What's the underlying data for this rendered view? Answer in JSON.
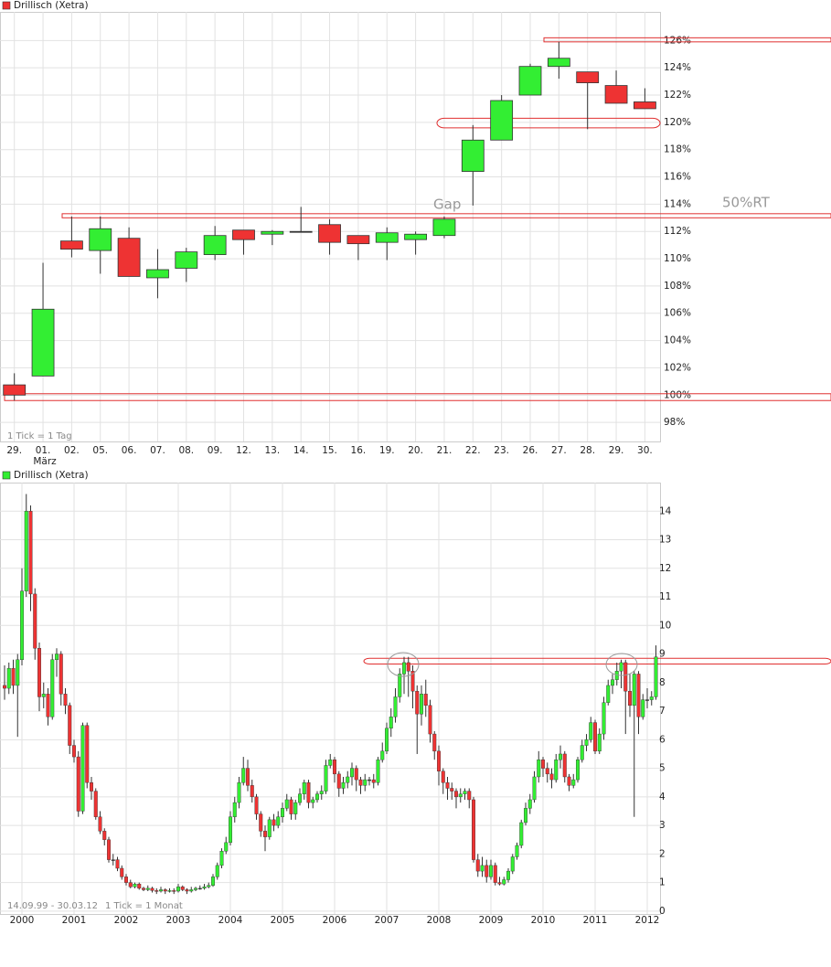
{
  "chart_data": [
    {
      "type": "candlestick",
      "categories": [
        "29.",
        "01.",
        "02.",
        "05.",
        "06.",
        "07.",
        "08.",
        "09.",
        "12.",
        "13.",
        "14.",
        "15.",
        "16.",
        "19.",
        "20.",
        "21.",
        "22.",
        "23.",
        "26.",
        "27.",
        "28.",
        "29.",
        "30."
      ],
      "series": [
        {
          "name": "Drillisch (Xetra)",
          "color": "#ee3333",
          "open": [
            100.75,
            101.4,
            111.3,
            110.6,
            111.5,
            108.6,
            109.3,
            110.3,
            112.1,
            111.8,
            112.0,
            112.5,
            111.7,
            111.2,
            111.4,
            111.7,
            116.4,
            118.7,
            122.0,
            124.1,
            123.7,
            122.7,
            121.5
          ],
          "high": [
            101.6,
            109.7,
            113.1,
            113.1,
            112.3,
            110.7,
            110.8,
            112.4,
            112.1,
            112.1,
            113.8,
            112.9,
            111.7,
            112.3,
            112.0,
            113.1,
            119.8,
            122.0,
            124.3,
            125.9,
            123.7,
            123.8,
            122.5
          ],
          "low": [
            99.6,
            101.4,
            110.1,
            108.9,
            108.7,
            107.1,
            108.3,
            109.9,
            110.3,
            111.0,
            112.0,
            110.3,
            109.9,
            109.9,
            110.3,
            111.5,
            113.9,
            118.7,
            122.0,
            123.2,
            119.5,
            121.4,
            121.0
          ],
          "close": [
            100.0,
            106.3,
            110.7,
            112.2,
            108.7,
            109.2,
            110.5,
            111.7,
            111.4,
            112.0,
            112.0,
            111.2,
            111.1,
            111.9,
            111.8,
            112.9,
            118.7,
            121.6,
            124.1,
            124.7,
            122.9,
            121.4,
            121.0
          ]
        }
      ],
      "up_color": "#33ee33",
      "down_color": "#ee3333",
      "ylim": [
        96.6,
        128.1
      ],
      "yticks": [
        {
          "value": 98,
          "label": "98%"
        },
        {
          "value": 100,
          "label": "100%"
        },
        {
          "value": 102,
          "label": "102%"
        },
        {
          "value": 104,
          "label": "104%"
        },
        {
          "value": 106,
          "label": "106%"
        },
        {
          "value": 108,
          "label": "108%"
        },
        {
          "value": 110,
          "label": "110%"
        },
        {
          "value": 112,
          "label": "112%"
        },
        {
          "value": 114,
          "label": "114%"
        },
        {
          "value": 116,
          "label": "116%"
        },
        {
          "value": 118,
          "label": "118%"
        },
        {
          "value": 120,
          "label": "120%"
        },
        {
          "value": 122,
          "label": "122%"
        },
        {
          "value": 124,
          "label": "124%"
        },
        {
          "value": 126,
          "label": "126%"
        }
      ],
      "grid": true,
      "zones": [
        [
          125.9,
          126.2
        ],
        [
          119.6,
          120.3
        ],
        [
          113.0,
          113.3
        ],
        [
          99.6,
          100.1
        ]
      ],
      "zone_color": "#e03030",
      "annotations": {
        "gap": "Gap",
        "retracement": "50%RT",
        "tick_note": "1 Tick = 1 Tag",
        "month": "März"
      }
    },
    {
      "type": "candlestick",
      "categories": [
        null,
        null,
        null,
        null,
        "2000",
        null,
        null,
        null,
        null,
        null,
        null,
        null,
        null,
        null,
        null,
        null,
        "2001",
        null,
        null,
        null,
        null,
        null,
        null,
        null,
        null,
        null,
        null,
        null,
        "2002",
        null,
        null,
        null,
        null,
        null,
        null,
        null,
        null,
        null,
        null,
        null,
        "2003",
        null,
        null,
        null,
        null,
        null,
        null,
        null,
        null,
        null,
        null,
        null,
        "2004",
        null,
        null,
        null,
        null,
        null,
        null,
        null,
        null,
        null,
        null,
        null,
        "2005",
        null,
        null,
        null,
        null,
        null,
        null,
        null,
        null,
        null,
        null,
        null,
        "2006",
        null,
        null,
        null,
        null,
        null,
        null,
        null,
        null,
        null,
        null,
        null,
        "2007",
        null,
        null,
        null,
        null,
        null,
        null,
        null,
        null,
        null,
        null,
        null,
        "2008",
        null,
        null,
        null,
        null,
        null,
        null,
        null,
        null,
        null,
        null,
        null,
        "2009",
        null,
        null,
        null,
        null,
        null,
        null,
        null,
        null,
        null,
        null,
        null,
        "2010",
        null,
        null,
        null,
        null,
        null,
        null,
        null,
        null,
        null,
        null,
        null,
        "2011",
        null,
        null,
        null,
        null,
        null,
        null,
        null,
        null,
        null,
        null,
        null,
        "2012",
        null,
        null
      ],
      "series": [
        {
          "name": "Drillisch (Xetra)",
          "color": "#33ee33",
          "open": [
            7.9,
            7.8,
            8.5,
            7.9,
            8.8,
            11.2,
            14.0,
            11.1,
            9.2,
            7.5,
            7.6,
            6.8,
            8.8,
            9.0,
            7.6,
            7.2,
            5.8,
            5.4,
            3.5,
            6.5,
            4.5,
            4.2,
            3.3,
            2.8,
            2.5,
            1.8,
            1.8,
            1.5,
            1.2,
            1.0,
            0.85,
            0.95,
            0.8,
            0.75,
            0.8,
            0.72,
            0.7,
            0.75,
            0.7,
            0.72,
            0.7,
            0.85,
            0.75,
            0.7,
            0.75,
            0.8,
            0.8,
            0.85,
            0.9,
            1.2,
            1.6,
            2.1,
            2.4,
            3.3,
            3.8,
            4.5,
            5.0,
            4.4,
            4.0,
            3.4,
            2.8,
            2.6,
            3.2,
            3.0,
            3.3,
            3.6,
            3.9,
            3.4,
            3.8,
            4.1,
            4.5,
            3.8,
            3.9,
            4.1,
            4.2,
            5.1,
            5.3,
            4.8,
            4.3,
            4.5,
            4.7,
            5.0,
            4.6,
            4.4,
            4.6,
            4.6,
            4.5,
            5.3,
            5.6,
            6.4,
            6.8,
            7.5,
            8.3,
            8.7,
            8.4,
            7.7,
            6.9,
            7.6,
            7.2,
            6.2,
            5.6,
            4.9,
            4.5,
            4.3,
            4.2,
            4.0,
            4.1,
            4.2,
            3.9,
            1.8,
            1.4,
            1.6,
            1.2,
            1.6,
            1.0,
            0.95,
            1.1,
            1.4,
            1.9,
            2.3,
            3.1,
            3.6,
            3.9,
            4.7,
            5.3,
            5.0,
            4.8,
            4.6,
            5.3,
            5.5,
            4.7,
            4.4,
            4.6,
            5.3,
            5.8,
            6.0,
            6.6,
            5.6,
            6.2,
            7.3,
            7.9,
            8.1,
            8.4,
            8.7,
            7.7,
            7.2,
            8.3,
            6.8,
            7.4,
            7.4,
            7.5
          ],
          "high": [
            8.6,
            8.7,
            8.8,
            9.0,
            12.0,
            14.6,
            14.2,
            11.3,
            9.4,
            8.0,
            7.8,
            9.0,
            9.2,
            9.1,
            7.8,
            7.3,
            6.0,
            5.6,
            6.6,
            6.6,
            4.7,
            4.3,
            3.5,
            2.9,
            2.6,
            2.0,
            1.9,
            1.6,
            1.3,
            1.1,
            1.0,
            1.0,
            0.85,
            0.9,
            0.85,
            0.8,
            0.85,
            0.8,
            0.8,
            0.8,
            0.95,
            0.9,
            0.8,
            0.85,
            0.85,
            0.9,
            0.95,
            1.0,
            1.3,
            1.7,
            2.2,
            2.6,
            3.5,
            4.0,
            4.7,
            5.4,
            5.3,
            4.6,
            4.1,
            3.5,
            3.0,
            3.3,
            3.4,
            3.5,
            3.8,
            4.1,
            4.0,
            3.9,
            4.3,
            4.6,
            4.6,
            4.0,
            4.2,
            4.4,
            5.3,
            5.5,
            5.4,
            4.9,
            4.7,
            4.9,
            5.2,
            5.1,
            4.7,
            4.8,
            4.7,
            4.8,
            5.4,
            5.9,
            6.6,
            7.1,
            7.8,
            8.5,
            8.9,
            8.9,
            8.6,
            7.9,
            7.9,
            8.1,
            7.4,
            6.3,
            5.8,
            5.0,
            4.7,
            4.5,
            4.3,
            4.3,
            4.3,
            4.3,
            4.0,
            2.0,
            1.9,
            1.8,
            1.8,
            1.7,
            1.2,
            1.2,
            1.5,
            2.0,
            2.4,
            3.2,
            3.8,
            4.1,
            4.9,
            5.6,
            5.4,
            5.2,
            5.0,
            5.5,
            5.8,
            5.6,
            4.8,
            4.8,
            5.4,
            6.0,
            6.2,
            6.8,
            6.7,
            6.4,
            7.5,
            8.1,
            8.3,
            8.7,
            8.8,
            8.8,
            8.3,
            8.4,
            8.4,
            7.6,
            7.8,
            7.7,
            9.3
          ],
          "low": [
            7.4,
            7.6,
            7.6,
            6.1,
            8.6,
            11.0,
            10.5,
            8.8,
            7.0,
            7.1,
            6.5,
            6.7,
            8.2,
            7.2,
            6.9,
            5.5,
            5.2,
            3.3,
            3.4,
            4.3,
            3.9,
            3.2,
            2.7,
            2.3,
            1.7,
            1.6,
            1.4,
            1.1,
            0.9,
            0.8,
            0.8,
            0.75,
            0.7,
            0.7,
            0.65,
            0.6,
            0.65,
            0.6,
            0.65,
            0.6,
            0.65,
            0.7,
            0.6,
            0.65,
            0.7,
            0.75,
            0.75,
            0.8,
            0.85,
            1.1,
            1.5,
            2.0,
            2.3,
            3.1,
            3.6,
            4.4,
            4.2,
            3.8,
            3.2,
            2.6,
            2.1,
            2.5,
            2.8,
            2.9,
            3.1,
            3.5,
            3.2,
            3.2,
            3.7,
            3.9,
            3.6,
            3.6,
            3.8,
            3.9,
            4.1,
            5.0,
            4.5,
            4.0,
            4.1,
            4.3,
            4.4,
            4.2,
            4.1,
            4.2,
            4.4,
            4.3,
            4.4,
            5.2,
            5.5,
            6.1,
            6.6,
            7.3,
            7.6,
            7.5,
            7.1,
            5.5,
            6.5,
            6.8,
            5.9,
            5.3,
            4.4,
            4.1,
            3.9,
            3.9,
            3.6,
            3.8,
            3.9,
            3.6,
            1.7,
            1.2,
            1.2,
            1.0,
            1.1,
            0.9,
            0.9,
            0.9,
            1.0,
            1.3,
            1.8,
            2.2,
            3.0,
            3.4,
            3.8,
            4.5,
            4.7,
            4.5,
            4.3,
            4.5,
            5.0,
            4.5,
            4.2,
            4.3,
            4.5,
            5.2,
            5.6,
            5.9,
            5.5,
            5.5,
            6.0,
            7.2,
            7.6,
            7.9,
            7.8,
            6.2,
            6.8,
            3.3,
            6.2,
            6.7,
            7.1,
            7.2,
            7.4
          ],
          "close": [
            7.8,
            8.5,
            7.9,
            8.8,
            11.2,
            14.0,
            11.1,
            9.2,
            7.5,
            7.6,
            6.8,
            8.8,
            9.0,
            7.6,
            7.2,
            5.8,
            5.4,
            3.5,
            6.5,
            4.5,
            4.2,
            3.3,
            2.8,
            2.5,
            1.8,
            1.8,
            1.5,
            1.2,
            1.0,
            0.85,
            0.95,
            0.8,
            0.75,
            0.8,
            0.72,
            0.7,
            0.75,
            0.7,
            0.72,
            0.7,
            0.85,
            0.75,
            0.7,
            0.75,
            0.8,
            0.8,
            0.85,
            0.9,
            1.2,
            1.6,
            2.1,
            2.4,
            3.3,
            3.8,
            4.5,
            5.0,
            4.4,
            4.0,
            3.4,
            2.8,
            2.6,
            3.2,
            3.0,
            3.3,
            3.6,
            3.9,
            3.4,
            3.8,
            4.1,
            4.5,
            3.8,
            3.9,
            4.1,
            4.2,
            5.1,
            5.3,
            4.8,
            4.3,
            4.5,
            4.7,
            5.0,
            4.6,
            4.4,
            4.6,
            4.6,
            4.5,
            5.3,
            5.6,
            6.4,
            6.8,
            7.5,
            8.3,
            8.7,
            8.4,
            7.7,
            6.9,
            7.6,
            7.2,
            6.2,
            5.6,
            4.9,
            4.5,
            4.3,
            4.2,
            4.0,
            4.1,
            4.2,
            3.9,
            1.8,
            1.4,
            1.6,
            1.2,
            1.6,
            1.0,
            0.95,
            1.1,
            1.4,
            1.9,
            2.3,
            3.1,
            3.6,
            3.9,
            4.7,
            5.3,
            5.0,
            4.8,
            4.6,
            5.3,
            5.5,
            4.7,
            4.4,
            4.6,
            5.3,
            5.8,
            6.0,
            6.6,
            5.6,
            6.2,
            7.3,
            7.9,
            8.1,
            8.4,
            8.7,
            7.7,
            7.2,
            8.3,
            6.8,
            7.4,
            7.4,
            7.5,
            8.9
          ]
        }
      ],
      "up_color": "#33ee33",
      "down_color": "#ee3333",
      "ylim": [
        -0.1,
        15.0
      ],
      "yticks": [
        0,
        1,
        2,
        3,
        4,
        5,
        6,
        7,
        8,
        9,
        10,
        11,
        12,
        13,
        14
      ],
      "grid": true,
      "zones": [
        [
          8.65,
          8.85
        ]
      ],
      "zone_color": "#e03030",
      "annotations": {
        "range": "14.09.99 - 30.03.12",
        "tick_note": "1 Tick = 1 Monat"
      }
    }
  ]
}
